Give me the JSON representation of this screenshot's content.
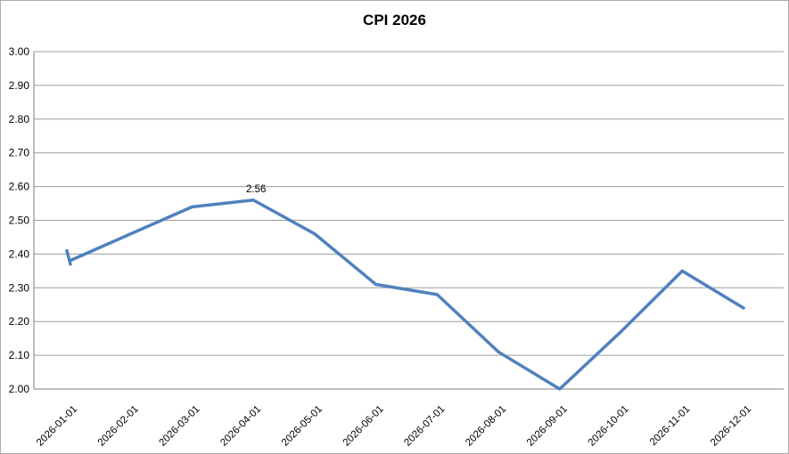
{
  "window": {
    "background": "#ffffff",
    "border_color": "#ababab"
  },
  "chart_data": {
    "type": "line",
    "title": "CPI 2026",
    "x": [
      "2026-01-01",
      "2026-02-01",
      "2026-03-01",
      "2026-04-01",
      "2026-05-01",
      "2026-06-01",
      "2026-07-01",
      "2026-08-01",
      "2026-09-01",
      "2026-10-01",
      "2026-11-01",
      "2026-12-01"
    ],
    "series": [
      {
        "name": "CPI",
        "values": [
          2.38,
          2.46,
          2.54,
          2.56,
          2.46,
          2.31,
          2.28,
          2.11,
          2.0,
          2.17,
          2.35,
          2.24
        ]
      }
    ],
    "ylim": [
      2.0,
      3.0
    ],
    "ytick_step": 0.1,
    "yticks": [
      "2.00",
      "2.10",
      "2.20",
      "2.30",
      "2.40",
      "2.50",
      "2.60",
      "2.70",
      "2.80",
      "2.90",
      "3.00"
    ],
    "xlabel": "",
    "ylabel": "",
    "grid": "horizontal",
    "legend": "none",
    "annotation": {
      "text": "2.56",
      "x": "2026-04-01",
      "x_index": 3
    },
    "start_tick": {
      "from_value": 2.41,
      "to_value": 2.37
    },
    "colors": {
      "line": "#4f81bd",
      "gridline": "#9c9c9c",
      "axis": "#7f7f7f",
      "text": "#000000",
      "background": "#ffffff"
    }
  }
}
